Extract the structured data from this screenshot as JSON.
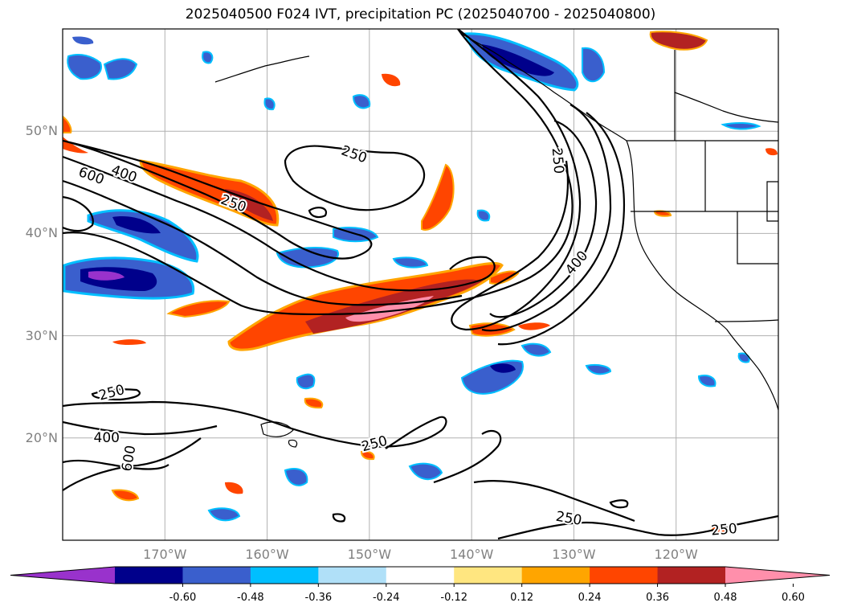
{
  "title": "2025040500 F024 IVT, precipitation PC (2025040700 - 2025040800)",
  "lat_labels": [
    {
      "text": "50°N",
      "lat": 50
    },
    {
      "text": "40°N",
      "lat": 40
    },
    {
      "text": "30°N",
      "lat": 30
    },
    {
      "text": "20°N",
      "lat": 20
    }
  ],
  "lon_labels": [
    {
      "text": "170°W",
      "lon": -170
    },
    {
      "text": "160°W",
      "lon": -160
    },
    {
      "text": "150°W",
      "lon": -150
    },
    {
      "text": "140°W",
      "lon": -140
    },
    {
      "text": "130°W",
      "lon": -130
    },
    {
      "text": "120°W",
      "lon": -120
    }
  ],
  "map_extent": {
    "lon_min": -180,
    "lon_max": -110,
    "lat_min": 10,
    "lat_max": 60
  },
  "contour_labels": [
    {
      "text": "600",
      "lon": -177.2,
      "lat": 45.6,
      "rot": 20
    },
    {
      "text": "400",
      "lon": -174.0,
      "lat": 45.8,
      "rot": 20
    },
    {
      "text": "250",
      "lon": -163.3,
      "lat": 42.9,
      "rot": 20
    },
    {
      "text": "250",
      "lon": -151.5,
      "lat": 47.7,
      "rot": 20
    },
    {
      "text": "250",
      "lon": -131.6,
      "lat": 47.1,
      "rot": 85
    },
    {
      "text": "400",
      "lon": -129.7,
      "lat": 37.1,
      "rot": -50
    },
    {
      "text": "250",
      "lon": -175.2,
      "lat": 24.4,
      "rot": -15
    },
    {
      "text": "400",
      "lon": -175.7,
      "lat": 20.0,
      "rot": 0
    },
    {
      "text": "600",
      "lon": -173.5,
      "lat": 18.0,
      "rot": -80
    },
    {
      "text": "250",
      "lon": -149.5,
      "lat": 19.4,
      "rot": -15
    },
    {
      "text": "250",
      "lon": -130.5,
      "lat": 12.1,
      "rot": 10
    },
    {
      "text": "250",
      "lon": -115.3,
      "lat": 11.0,
      "rot": -5
    }
  ],
  "colorbar": {
    "colors": [
      "#9932cc",
      "#00008b",
      "#3a5fcd",
      "#00bfff",
      "#b0e0f8",
      "#ffffff",
      "#ffe680",
      "#ffa500",
      "#ff4500",
      "#b22222",
      "#ff8fab"
    ],
    "ticks": [
      "-0.60",
      "-0.48",
      "-0.36",
      "-0.24",
      "-0.12",
      "0.12",
      "0.24",
      "0.36",
      "0.48",
      "0.60"
    ]
  }
}
